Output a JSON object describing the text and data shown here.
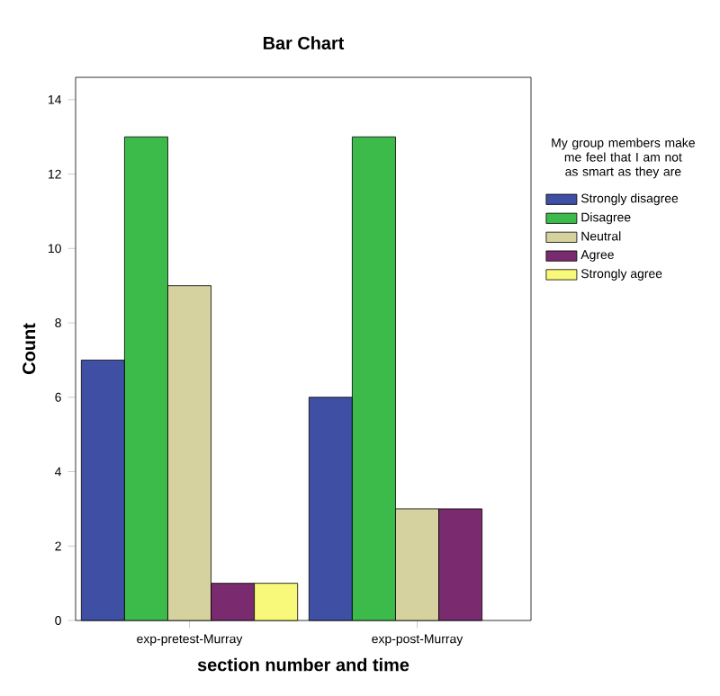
{
  "chart_data": {
    "type": "bar",
    "title": "Bar Chart",
    "xlabel": "section number and time",
    "ylabel": "Count",
    "legend_title": "My group members make me feel that I am not as smart as they are",
    "categories": [
      "exp-pretest-Murray",
      "exp-post-Murray"
    ],
    "series": [
      {
        "name": "Strongly disagree",
        "color": "#3f4fa3",
        "values": [
          7,
          6
        ]
      },
      {
        "name": "Disagree",
        "color": "#3dbb4a",
        "values": [
          13,
          13
        ]
      },
      {
        "name": "Neutral",
        "color": "#d6d2a0",
        "values": [
          9,
          3
        ]
      },
      {
        "name": "Agree",
        "color": "#7a2a6e",
        "values": [
          1,
          3
        ]
      },
      {
        "name": "Strongly agree",
        "color": "#f8f87a",
        "values": [
          1,
          null
        ]
      }
    ],
    "ylim": [
      0,
      14.6
    ],
    "yticks": [
      0,
      2,
      4,
      6,
      8,
      10,
      12,
      14
    ],
    "legend": "right"
  }
}
